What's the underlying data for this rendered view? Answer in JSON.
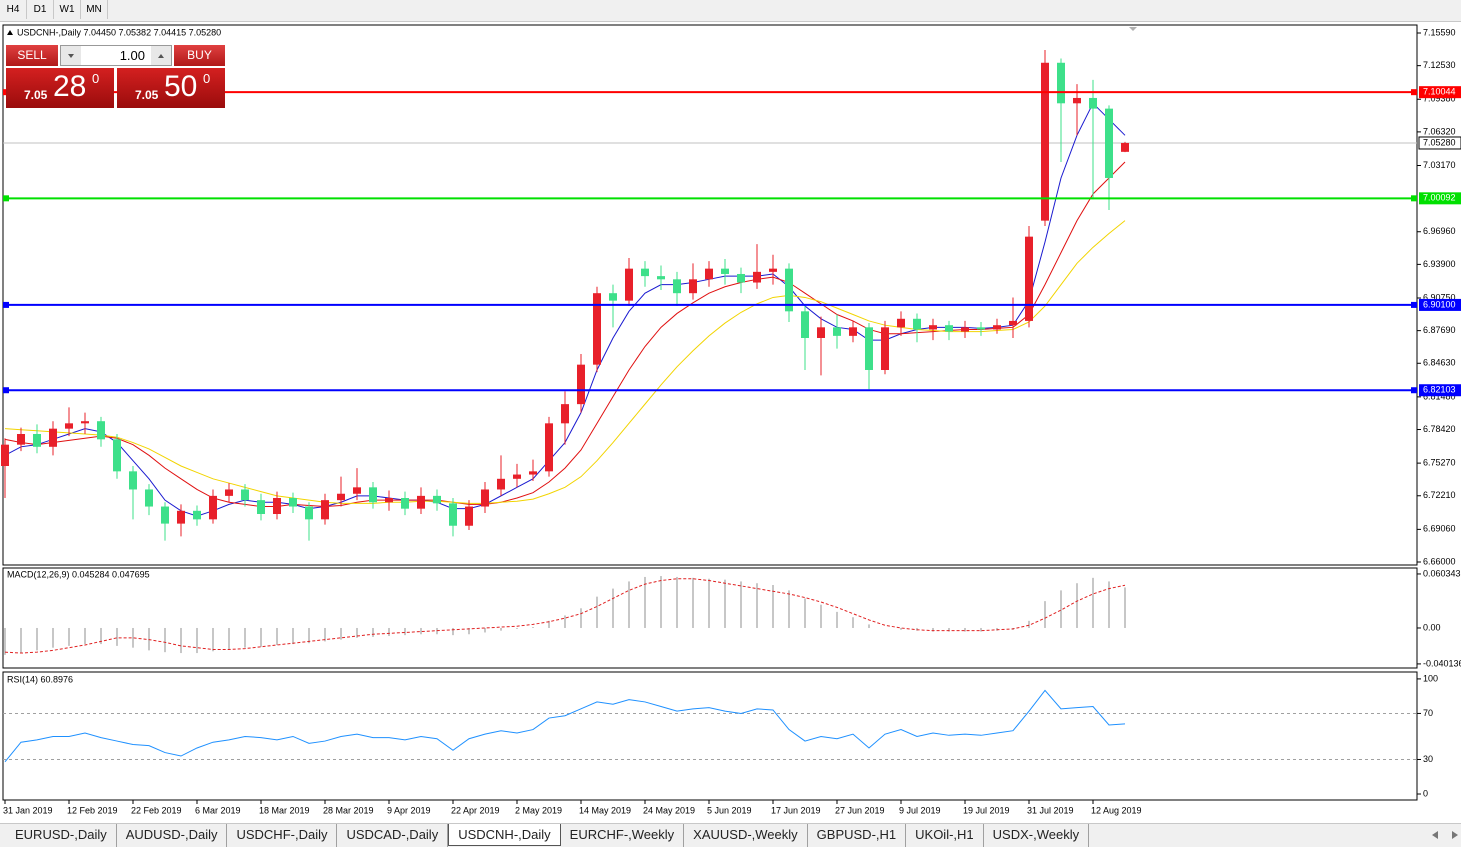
{
  "toolbar": {
    "timeframes": [
      "H4",
      "D1",
      "W1",
      "MN"
    ]
  },
  "trade_panel": {
    "sell": "SELL",
    "buy": "BUY",
    "lot": "1.00",
    "sell_price": {
      "big": "7.05",
      "pips": "28",
      "point": "0"
    },
    "buy_price": {
      "big": "7.05",
      "pips": "50",
      "point": "0"
    }
  },
  "tabs": {
    "items": [
      "EURUSD-,Daily",
      "AUDUSD-,Daily",
      "USDCHF-,Daily",
      "USDCAD-,Daily",
      "USDCNH-,Daily",
      "EURCHF-,Weekly",
      "XAUUSD-,Weekly",
      "GBPUSD-,H1",
      "UKOil-,H1",
      "USDX-,Weekly"
    ],
    "active_tab": 4
  },
  "chart_data": {
    "type": "candlestick",
    "title": "USDCNH-,Daily 7.04450 7.05382 7.04415 7.05280",
    "categories": [
      "31 Jan 2019",
      null,
      null,
      null,
      "12 Feb 2019",
      null,
      null,
      null,
      "22 Feb 2019",
      null,
      null,
      null,
      "6 Mar 2019",
      null,
      null,
      null,
      "18 Mar 2019",
      null,
      null,
      null,
      "28 Mar 2019",
      null,
      null,
      null,
      "9 Apr 2019",
      null,
      null,
      null,
      "22 Apr 2019",
      null,
      null,
      null,
      "2 May 2019",
      null,
      null,
      null,
      "14 May 2019",
      null,
      null,
      null,
      "24 May 2019",
      null,
      null,
      null,
      "5 Jun 2019",
      null,
      null,
      null,
      "17 Jun 2019",
      null,
      null,
      null,
      "27 Jun 2019",
      null,
      null,
      null,
      "9 Jul 2019",
      null,
      null,
      null,
      "19 Jul 2019",
      null,
      null,
      null,
      "31 Jul 2019",
      null,
      null,
      null,
      "12 Aug 2019",
      null,
      null
    ],
    "open": [
      6.75,
      6.77,
      6.78,
      6.768,
      6.785,
      6.79,
      6.792,
      6.775,
      6.745,
      6.728,
      6.712,
      6.696,
      6.708,
      6.7,
      6.722,
      6.728,
      6.718,
      6.705,
      6.72,
      6.712,
      6.7,
      6.718,
      6.724,
      6.73,
      6.716,
      6.72,
      6.71,
      6.722,
      6.715,
      6.694,
      6.712,
      6.728,
      6.738,
      6.742,
      6.745,
      6.79,
      6.808,
      6.845,
      6.912,
      6.905,
      6.935,
      6.928,
      6.925,
      6.912,
      6.925,
      6.935,
      6.93,
      6.922,
      6.932,
      6.935,
      6.895,
      6.87,
      6.88,
      6.872,
      6.88,
      6.84,
      6.88,
      6.888,
      6.878,
      6.882,
      6.876,
      6.88,
      6.878,
      6.882,
      6.886,
      6.98,
      7.128,
      7.09,
      7.095,
      7.085,
      7.0445
    ],
    "high": [
      6.776,
      6.786,
      6.789,
      6.792,
      6.805,
      6.8,
      6.796,
      6.78,
      6.75,
      6.733,
      6.716,
      6.714,
      6.713,
      6.728,
      6.734,
      6.733,
      6.724,
      6.726,
      6.725,
      6.716,
      6.724,
      6.74,
      6.748,
      6.735,
      6.727,
      6.726,
      6.73,
      6.728,
      6.72,
      6.718,
      6.735,
      6.76,
      6.752,
      6.756,
      6.796,
      6.82,
      6.855,
      6.918,
      6.92,
      6.945,
      6.942,
      6.938,
      6.932,
      6.94,
      6.942,
      6.944,
      6.936,
      6.958,
      6.948,
      6.94,
      6.9,
      6.89,
      6.892,
      6.886,
      6.884,
      6.886,
      6.895,
      6.893,
      6.888,
      6.886,
      6.886,
      6.885,
      6.888,
      6.908,
      6.975,
      7.14,
      7.132,
      7.108,
      7.112,
      7.088,
      7.0538
    ],
    "low": [
      6.72,
      6.764,
      6.762,
      6.76,
      6.778,
      6.78,
      6.768,
      6.738,
      6.7,
      6.704,
      6.68,
      6.684,
      6.694,
      6.696,
      6.716,
      6.712,
      6.699,
      6.7,
      6.706,
      6.68,
      6.695,
      6.712,
      6.718,
      6.71,
      6.708,
      6.704,
      6.705,
      6.708,
      6.684,
      6.69,
      6.706,
      6.722,
      6.73,
      6.736,
      6.74,
      6.77,
      6.8,
      6.838,
      6.88,
      6.9,
      6.918,
      6.915,
      6.9,
      6.906,
      6.918,
      6.92,
      6.912,
      6.916,
      6.92,
      6.885,
      6.84,
      6.835,
      6.86,
      6.866,
      6.822,
      6.836,
      6.872,
      6.866,
      6.868,
      6.868,
      6.87,
      6.872,
      6.874,
      6.87,
      6.88,
      6.975,
      7.035,
      7.06,
      7.0,
      6.99,
      7.0442
    ],
    "close": [
      6.77,
      6.78,
      6.768,
      6.785,
      6.79,
      6.792,
      6.775,
      6.745,
      6.728,
      6.712,
      6.696,
      6.708,
      6.7,
      6.722,
      6.728,
      6.718,
      6.705,
      6.72,
      6.712,
      6.7,
      6.718,
      6.724,
      6.73,
      6.716,
      6.72,
      6.71,
      6.722,
      6.715,
      6.694,
      6.712,
      6.728,
      6.738,
      6.742,
      6.745,
      6.79,
      6.808,
      6.845,
      6.912,
      6.905,
      6.935,
      6.928,
      6.925,
      6.912,
      6.925,
      6.935,
      6.93,
      6.922,
      6.932,
      6.935,
      6.895,
      6.87,
      6.88,
      6.872,
      6.88,
      6.84,
      6.88,
      6.888,
      6.878,
      6.882,
      6.876,
      6.88,
      6.878,
      6.882,
      6.886,
      6.965,
      7.128,
      7.09,
      7.095,
      7.085,
      7.02,
      7.0528
    ],
    "up_color": "#e8202a",
    "down_color": "#3de08a",
    "ylim": [
      6.6572,
      7.1634
    ],
    "yticks": [
      {
        "value": 7.1559,
        "label": "7.15590"
      },
      {
        "value": 7.1253,
        "label": "7.12530"
      },
      {
        "value": 7.0938,
        "label": "7.09380"
      },
      {
        "value": 7.0632,
        "label": "7.06320"
      },
      {
        "value": 7.0317,
        "label": "7.03170"
      },
      {
        "value": 6.9696,
        "label": "6.96960"
      },
      {
        "value": 6.939,
        "label": "6.93900"
      },
      {
        "value": 6.9075,
        "label": "6.90750"
      },
      {
        "value": 6.8769,
        "label": "6.87690"
      },
      {
        "value": 6.8463,
        "label": "6.84630"
      },
      {
        "value": 6.8148,
        "label": "6.81480"
      },
      {
        "value": 6.7842,
        "label": "6.78420"
      },
      {
        "value": 6.7527,
        "label": "6.75270"
      },
      {
        "value": 6.7221,
        "label": "6.72210"
      },
      {
        "value": 6.6906,
        "label": "6.69060"
      },
      {
        "value": 6.66,
        "label": "6.66000"
      }
    ],
    "moving_averages": [
      {
        "color": "#1a1ad0",
        "values": [
          6.76,
          6.768,
          6.77,
          6.775,
          6.78,
          6.785,
          6.782,
          6.772,
          6.755,
          6.738,
          6.718,
          6.708,
          6.703,
          6.708,
          6.714,
          6.718,
          6.716,
          6.716,
          6.714,
          6.71,
          6.712,
          6.716,
          6.722,
          6.722,
          6.72,
          6.718,
          6.718,
          6.716,
          6.71,
          6.71,
          6.714,
          6.722,
          6.73,
          6.738,
          6.755,
          6.772,
          6.8,
          6.84,
          6.87,
          6.895,
          6.912,
          6.92,
          6.92,
          6.922,
          6.925,
          6.928,
          6.928,
          6.928,
          6.93,
          6.918,
          6.9,
          6.888,
          6.88,
          6.878,
          6.868,
          6.868,
          6.874,
          6.878,
          6.88,
          6.88,
          6.88,
          6.879,
          6.88,
          6.882,
          6.905,
          6.96,
          7.02,
          7.06,
          7.09,
          7.075,
          7.06
        ]
      },
      {
        "color": "#e01010",
        "values": [
          6.775,
          6.772,
          6.77,
          6.772,
          6.774,
          6.776,
          6.778,
          6.776,
          6.77,
          6.76,
          6.748,
          6.738,
          6.728,
          6.72,
          6.716,
          6.714,
          6.712,
          6.712,
          6.714,
          6.713,
          6.712,
          6.713,
          6.716,
          6.718,
          6.718,
          6.718,
          6.718,
          6.718,
          6.716,
          6.714,
          6.714,
          6.716,
          6.72,
          6.725,
          6.735,
          6.748,
          6.765,
          6.79,
          6.815,
          6.84,
          6.862,
          6.88,
          6.893,
          6.903,
          6.912,
          6.918,
          6.922,
          6.925,
          6.927,
          6.922,
          6.912,
          6.902,
          6.892,
          6.886,
          6.878,
          6.874,
          6.874,
          6.875,
          6.876,
          6.877,
          6.878,
          6.878,
          6.879,
          6.88,
          6.892,
          6.92,
          6.95,
          6.98,
          7.005,
          7.02,
          7.035
        ]
      },
      {
        "color": "#f2d400",
        "values": [
          6.785,
          6.784,
          6.783,
          6.782,
          6.781,
          6.78,
          6.779,
          6.777,
          6.772,
          6.766,
          6.758,
          6.75,
          6.744,
          6.738,
          6.734,
          6.73,
          6.726,
          6.722,
          6.72,
          6.718,
          6.716,
          6.715,
          6.715,
          6.715,
          6.716,
          6.716,
          6.717,
          6.717,
          6.716,
          6.715,
          6.715,
          6.716,
          6.717,
          6.719,
          6.724,
          6.73,
          6.74,
          6.755,
          6.772,
          6.79,
          6.808,
          6.826,
          6.843,
          6.858,
          6.872,
          6.884,
          6.894,
          6.902,
          6.908,
          6.91,
          6.908,
          6.904,
          6.898,
          6.892,
          6.886,
          6.882,
          6.88,
          6.878,
          6.877,
          6.876,
          6.876,
          6.876,
          6.877,
          6.878,
          6.885,
          6.9,
          6.92,
          6.94,
          6.955,
          6.968,
          6.98
        ]
      }
    ],
    "levels": [
      {
        "value": 7.10044,
        "label": "7.10044",
        "color": "#ff0000"
      },
      {
        "value": 7.00092,
        "label": "7.00092",
        "color": "#00e000"
      },
      {
        "value": 6.901,
        "label": "6.90100",
        "color": "#0000ff"
      },
      {
        "value": 6.82103,
        "label": "6.82103",
        "color": "#0000ff"
      }
    ],
    "current": {
      "value": 7.0528,
      "label": "7.05280",
      "color": "#c0c0c0"
    },
    "macd": {
      "title": "MACD(12,26,9) 0.045284 0.047695",
      "histogram_color": "#b4b4b4",
      "signal_color": "#e02020",
      "histogram": [
        -0.03,
        -0.028,
        -0.025,
        -0.022,
        -0.02,
        -0.018,
        -0.018,
        -0.02,
        -0.022,
        -0.025,
        -0.027,
        -0.028,
        -0.028,
        -0.026,
        -0.024,
        -0.022,
        -0.021,
        -0.019,
        -0.018,
        -0.017,
        -0.015,
        -0.013,
        -0.011,
        -0.01,
        -0.009,
        -0.008,
        -0.007,
        -0.007,
        -0.008,
        -0.007,
        -0.005,
        -0.003,
        -0.001,
        0.001,
        0.008,
        0.014,
        0.022,
        0.035,
        0.044,
        0.052,
        0.057,
        0.058,
        0.057,
        0.056,
        0.055,
        0.054,
        0.052,
        0.05,
        0.048,
        0.042,
        0.033,
        0.026,
        0.018,
        0.012,
        0.004,
        0.0,
        -0.002,
        -0.003,
        -0.004,
        -0.004,
        -0.004,
        -0.004,
        -0.003,
        -0.002,
        0.008,
        0.03,
        0.042,
        0.05,
        0.056,
        0.052,
        0.045284
      ],
      "signal": [
        -0.027,
        -0.028,
        -0.027,
        -0.025,
        -0.022,
        -0.019,
        -0.015,
        -0.011,
        -0.011,
        -0.013,
        -0.016,
        -0.02,
        -0.022,
        -0.024,
        -0.024,
        -0.023,
        -0.021,
        -0.019,
        -0.017,
        -0.015,
        -0.013,
        -0.011,
        -0.009,
        -0.007,
        -0.006,
        -0.005,
        -0.004,
        -0.003,
        -0.002,
        -0.001,
        0.0,
        0.001,
        0.002,
        0.004,
        0.007,
        0.011,
        0.016,
        0.024,
        0.033,
        0.042,
        0.049,
        0.053,
        0.055,
        0.055,
        0.053,
        0.05,
        0.047,
        0.044,
        0.041,
        0.038,
        0.034,
        0.029,
        0.023,
        0.016,
        0.009,
        0.003,
        0.0,
        -0.002,
        -0.003,
        -0.003,
        -0.003,
        -0.003,
        -0.002,
        -0.001,
        0.003,
        0.011,
        0.02,
        0.03,
        0.038,
        0.044,
        0.047695
      ],
      "ylim": [
        -0.0447,
        0.067
      ],
      "yticks": [
        0.060343,
        {
          "value": 0,
          "label": "0.00"
        },
        -0.040136
      ]
    },
    "rsi": {
      "title": "RSI(14) 60.8976",
      "color": "#1e90ff",
      "values": [
        28,
        45,
        47,
        50,
        50,
        53,
        49,
        46,
        43,
        42,
        36,
        33,
        40,
        45,
        47,
        50,
        49,
        47,
        50,
        44,
        46,
        50,
        52,
        49,
        49,
        47,
        50,
        48,
        38,
        48,
        52,
        55,
        53,
        56,
        66,
        68,
        74,
        80,
        78,
        82,
        80,
        76,
        72,
        74,
        75,
        72,
        70,
        74,
        73,
        56,
        46,
        50,
        48,
        52,
        40,
        52,
        56,
        50,
        53,
        51,
        52,
        51,
        53,
        55,
        72,
        90,
        74,
        75,
        76,
        60,
        60.8976
      ],
      "ylim": [
        -5.2,
        106
      ],
      "yticks": [
        100,
        70,
        30,
        0
      ],
      "levels": [
        70,
        30
      ]
    }
  }
}
